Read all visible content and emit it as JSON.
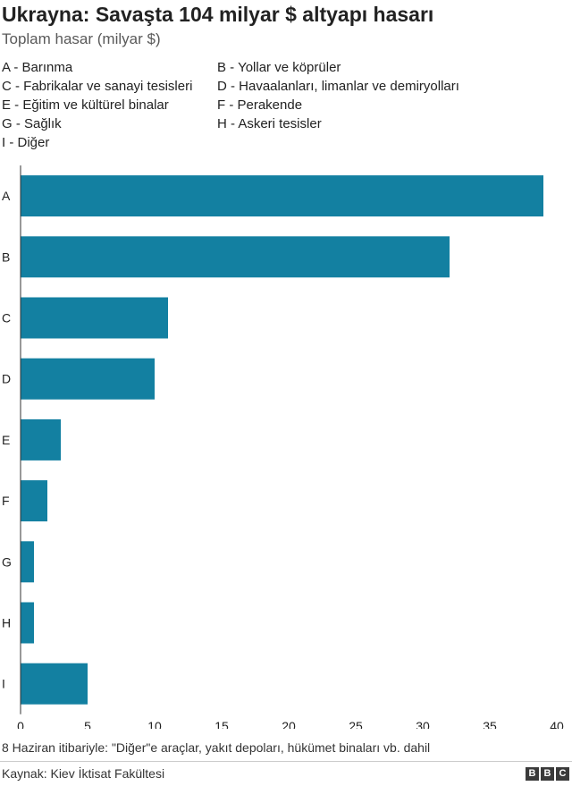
{
  "chart_data": {
    "type": "bar",
    "orientation": "horizontal",
    "title": "Ukrayna: Savaşta 104 milyar $ altyapı hasarı",
    "subtitle": "Toplam hasar (milyar $)",
    "categories": [
      "A",
      "B",
      "C",
      "D",
      "E",
      "F",
      "G",
      "H",
      "I"
    ],
    "values": [
      39,
      32,
      11,
      10,
      3,
      2,
      1,
      1,
      5
    ],
    "xlim": [
      0,
      40
    ],
    "xticks": [
      0,
      5,
      10,
      15,
      20,
      25,
      30,
      35,
      40
    ],
    "bar_color": "#1380a1",
    "legend_entries": [
      "A - Barınma",
      "B - Yollar ve köprüler",
      "C - Fabrikalar ve sanayi tesisleri",
      "D - Havaalanları, limanlar ve demiryolları",
      "E - Eğitim ve kültürel binalar",
      "F - Perakende",
      "G - Sağlık",
      "H - Askeri tesisler",
      "I - Diğer"
    ],
    "grid": false,
    "legend_placement": "top"
  },
  "footnote": "8 Haziran itibariyle: \"Diğer\"e araçlar, yakıt depoları, hükümet binaları vb. dahil",
  "source": "Kaynak: Kiev İktisat Fakültesi",
  "logo": [
    "B",
    "B",
    "C"
  ]
}
